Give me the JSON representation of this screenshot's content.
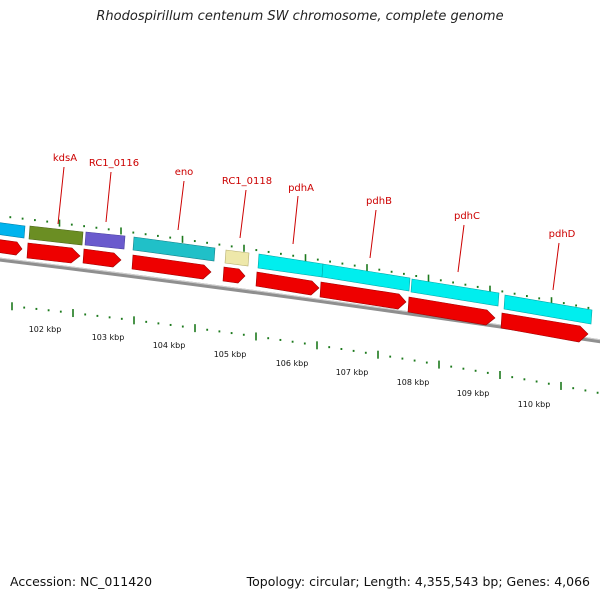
{
  "title": "Rhodospirillum centenum SW chromosome, complete genome",
  "footer": {
    "accession": "Accession: NC_011420",
    "summary": "Topology: circular; Length: 4,355,543 bp; Genes: 4,066"
  },
  "colors": {
    "backbone": "#8a8a8a",
    "cds_arrow": "#ee0000",
    "gene_label": "#cc0000",
    "tick": "#1d7a1d",
    "kds_a": "#6b8e23",
    "rc1_0116": "#6a5acd",
    "eno": "#20c0c8",
    "rc1_0118": "#eee8aa",
    "pdh": "#00eeee"
  },
  "gene_labels": [
    {
      "id": "kdsA",
      "text": "kdsA"
    },
    {
      "id": "rc1_0116",
      "text": "RC1_0116"
    },
    {
      "id": "eno",
      "text": "eno"
    },
    {
      "id": "rc1_0118",
      "text": "RC1_0118"
    },
    {
      "id": "pdhA",
      "text": "pdhA"
    },
    {
      "id": "pdhB",
      "text": "pdhB"
    },
    {
      "id": "pdhC",
      "text": "pdhC"
    },
    {
      "id": "pdhD",
      "text": "pdhD"
    }
  ],
  "scale_labels": [
    "102 kbp",
    "103 kbp",
    "104 kbp",
    "105 kbp",
    "106 kbp",
    "107 kbp",
    "108 kbp",
    "109 kbp",
    "110 kbp"
  ]
}
